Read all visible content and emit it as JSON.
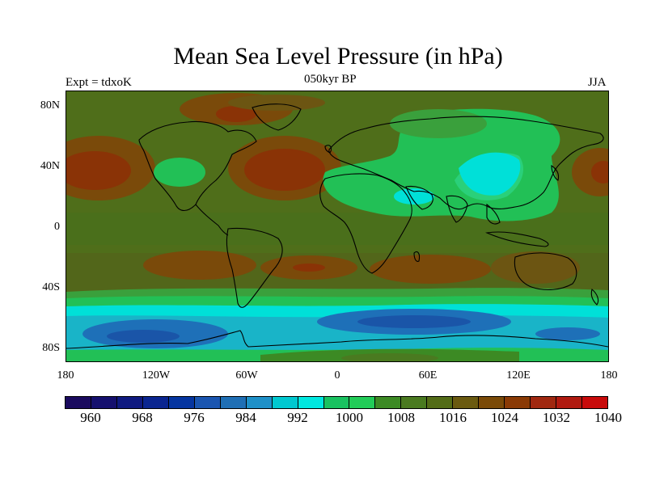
{
  "title": "Mean Sea Level Pressure (in hPa)",
  "subtitle": "050kyr BP",
  "left_label": "Expt = tdxoK",
  "right_label": "JJA",
  "lat_ticks": [
    "80N",
    "40N",
    "0",
    "40S",
    "80S"
  ],
  "lon_ticks": [
    "180",
    "120W",
    "60W",
    "0",
    "60E",
    "120E",
    "180"
  ],
  "colorbar": {
    "labels": [
      "960",
      "968",
      "976",
      "984",
      "992",
      "1000",
      "1008",
      "1016",
      "1024",
      "1032",
      "1040"
    ],
    "colors": [
      "#1a0a5e",
      "#15106e",
      "#0f1a80",
      "#0a2590",
      "#0535a0",
      "#1a55b0",
      "#1f6fb5",
      "#1e90c8",
      "#00c8d0",
      "#00e8e0",
      "#19c260",
      "#22cc58",
      "#3c8a24",
      "#4a7a20",
      "#536c17",
      "#6a5a10",
      "#7a4a08",
      "#8a3a05",
      "#a02810",
      "#b01a10",
      "#c80a0a"
    ]
  },
  "field_colors": {
    "background": "#4f6e1a",
    "land_green": "#3d8a23",
    "high": "#7c4508",
    "high_core": "#8a3306",
    "mid_green": "#22c056",
    "cyan": "#00e0d8",
    "teal": "#19b4c8",
    "blue": "#1e70b8",
    "deep_blue": "#1a55a8"
  }
}
